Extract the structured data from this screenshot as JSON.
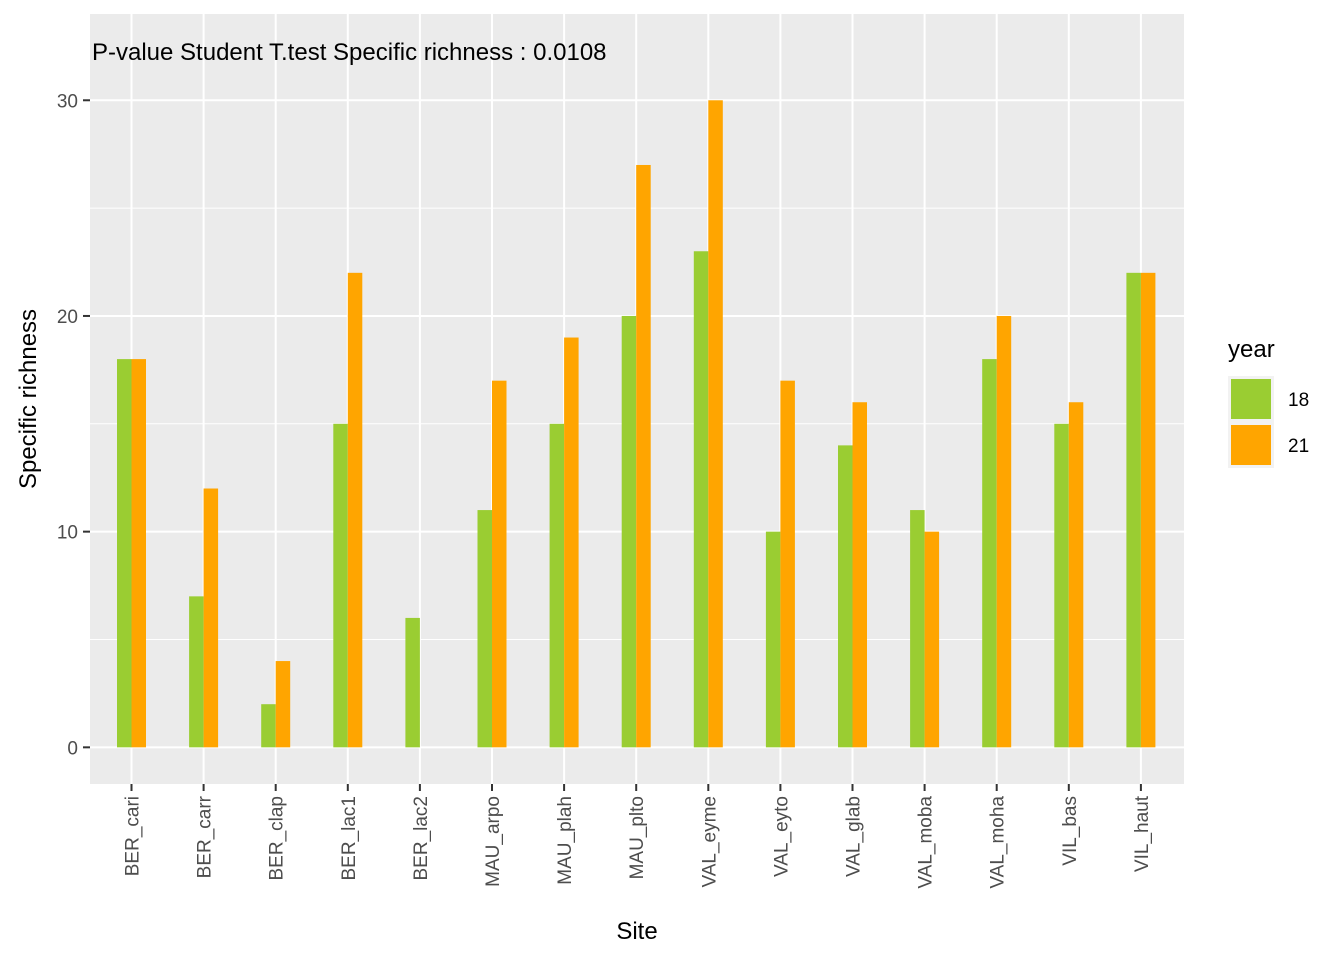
{
  "chart_data": {
    "type": "bar",
    "title": "",
    "annotation": "P-value Student T.test Specific richness : 0.0108",
    "xlabel": "Site",
    "ylabel": "Specific richness",
    "categories": [
      "BER_cari",
      "BER_carr",
      "BER_clap",
      "BER_lac1",
      "BER_lac2",
      "MAU_arpo",
      "MAU_plah",
      "MAU_plto",
      "VAL_eyme",
      "VAL_eyto",
      "VAL_glab",
      "VAL_moba",
      "VAL_moha",
      "VIL_bas",
      "VIL_haut"
    ],
    "series": [
      {
        "name": "18",
        "color": "#9acd32",
        "values": [
          18,
          7,
          2,
          15,
          6,
          11,
          15,
          20,
          23,
          10,
          14,
          11,
          18,
          15,
          22
        ]
      },
      {
        "name": "21",
        "color": "#ffa500",
        "values": [
          18,
          12,
          4,
          22,
          0,
          17,
          19,
          27,
          30,
          17,
          16,
          10,
          20,
          16,
          22
        ]
      }
    ],
    "ylim": [
      -1.7,
      34
    ],
    "yticks": [
      0,
      10,
      20,
      30
    ],
    "grid": true,
    "legend": {
      "title": "year",
      "position": "right"
    },
    "panel_background": "#ebebeb",
    "grid_color": "#ffffff"
  }
}
